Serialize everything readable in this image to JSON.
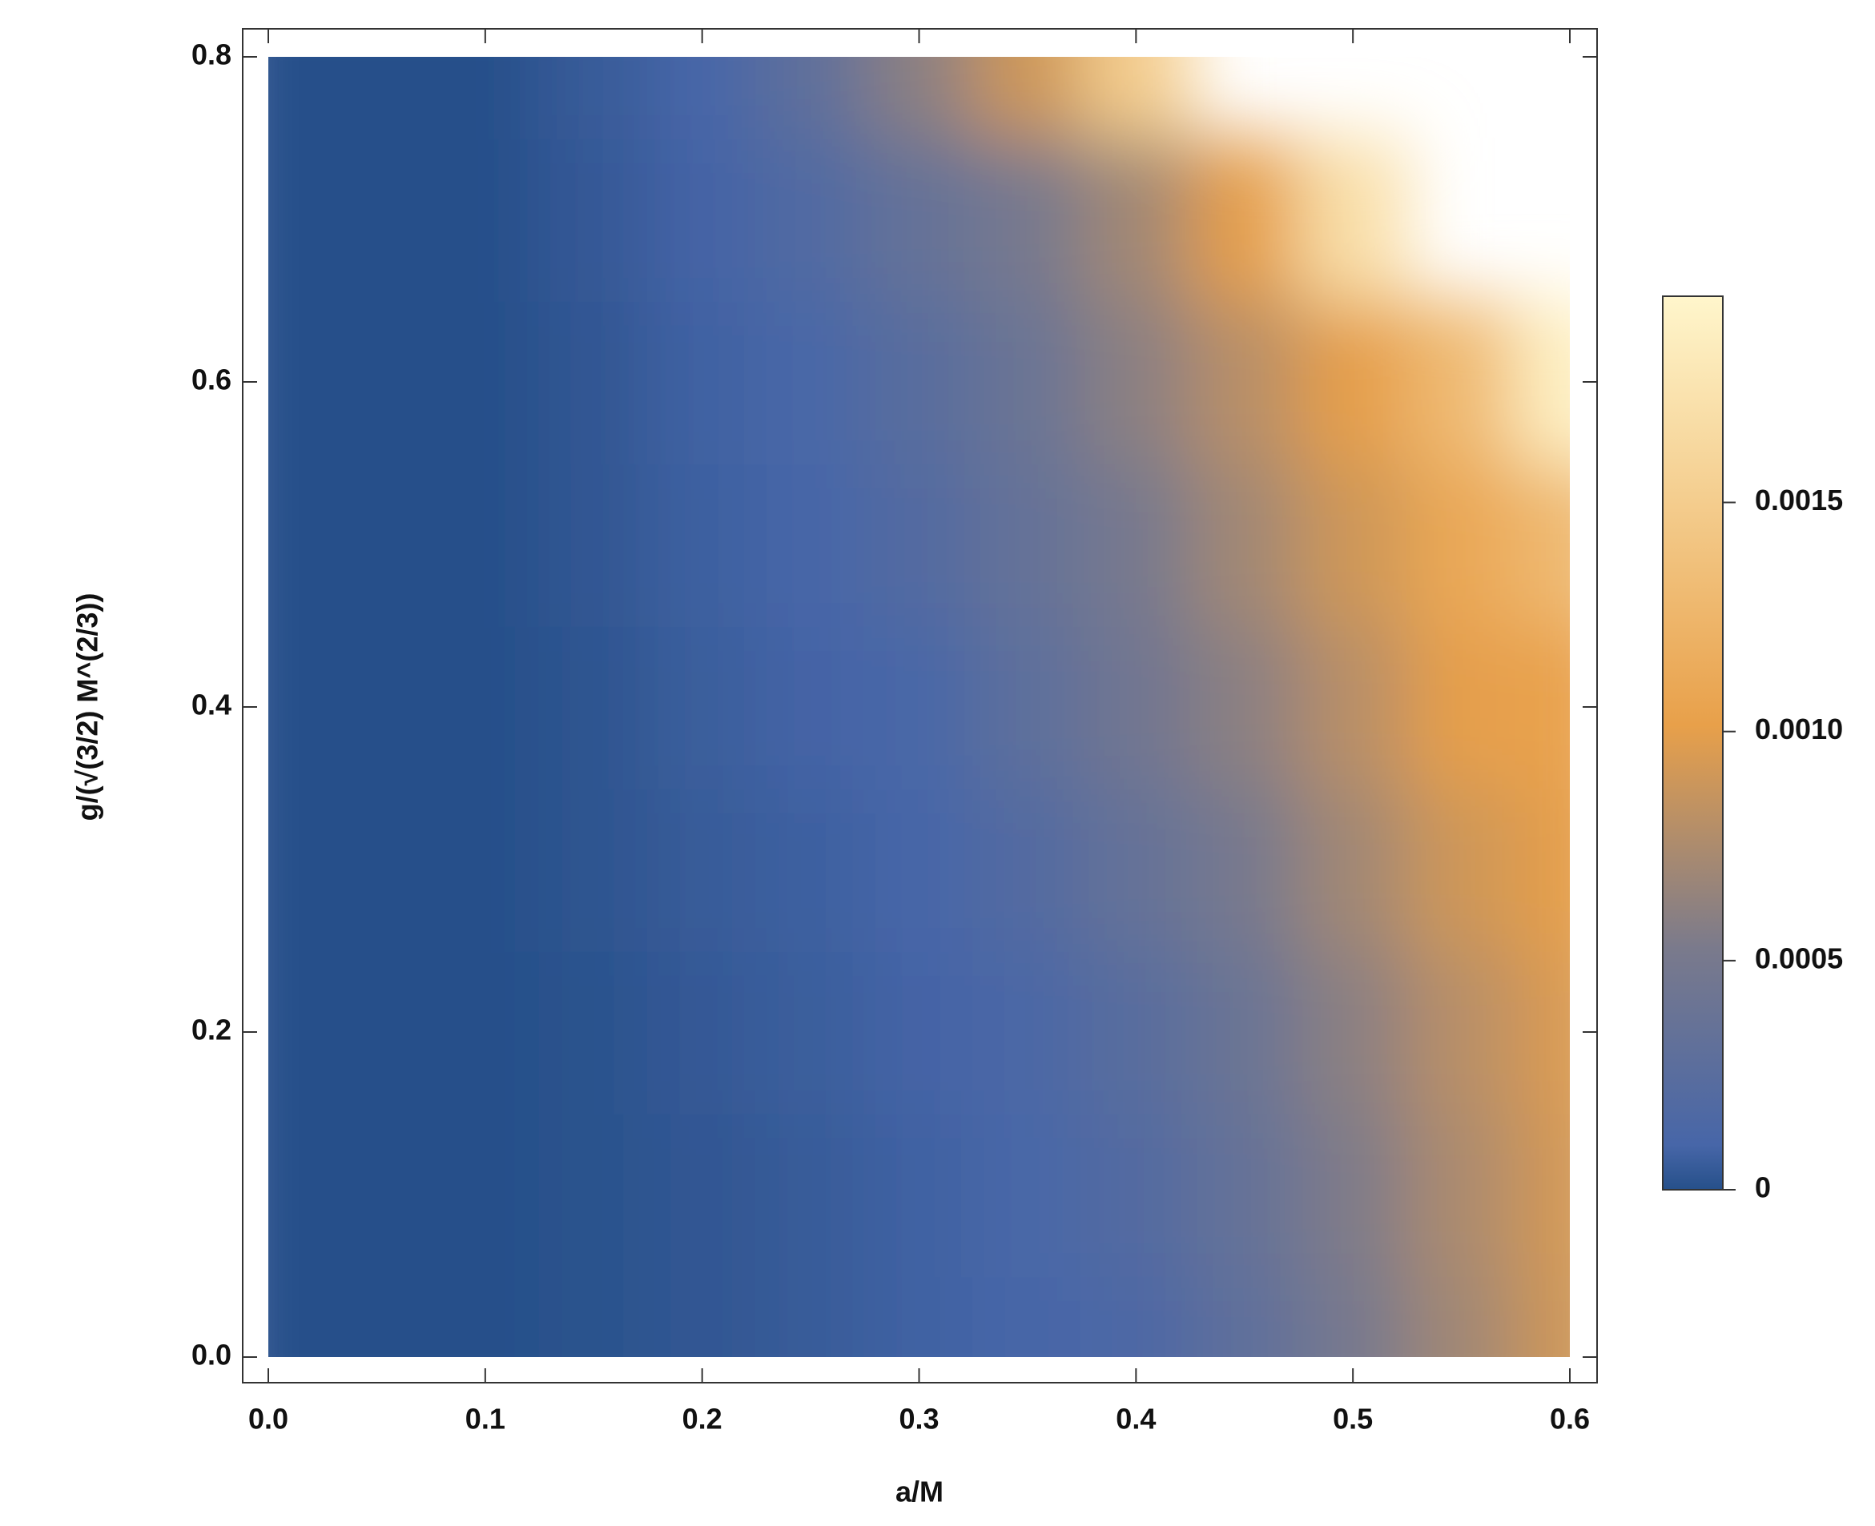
{
  "chart_data": {
    "type": "density",
    "xlabel": "a/M",
    "ylabel": "g/(√(3/2) M^(2/3))",
    "x": [
      0,
      0.05,
      0.1,
      0.15,
      0.2,
      0.25,
      0.3,
      0.35,
      0.4,
      0.45,
      0.5,
      0.55,
      0.6
    ],
    "y": [
      0,
      0.1,
      0.2,
      0.3,
      0.4,
      0.5,
      0.6,
      0.7,
      0.8
    ],
    "values": [
      [
        0,
        0,
        0,
        1e-05,
        3e-05,
        5e-05,
        8e-05,
        0.0001,
        0.00015,
        0.0003,
        0.0005,
        0.0007,
        0.0009
      ],
      [
        0,
        0,
        0,
        1e-05,
        3e-05,
        5e-05,
        8e-05,
        0.00011,
        0.0002,
        0.00035,
        0.00055,
        0.00075,
        0.00092
      ],
      [
        0,
        0,
        0,
        1e-05,
        4e-05,
        6e-05,
        9e-05,
        0.00013,
        0.00025,
        0.0004,
        0.0006,
        0.0008,
        0.00095
      ],
      [
        0,
        0,
        0,
        2e-05,
        5e-05,
        7e-05,
        0.0001,
        0.0002,
        0.00035,
        0.0005,
        0.0007,
        0.0009,
        0.001
      ],
      [
        0,
        0,
        0,
        2e-05,
        6e-05,
        9e-05,
        0.00012,
        0.00028,
        0.00045,
        0.0006,
        0.0008,
        0.001,
        0.00105
      ],
      [
        0,
        0,
        0,
        3e-05,
        7e-05,
        0.0001,
        0.0002,
        0.00035,
        0.0005,
        0.0007,
        0.0009,
        0.0011,
        0.0013
      ],
      [
        0,
        0,
        0,
        3e-05,
        8e-05,
        0.00012,
        0.00025,
        0.0004,
        0.0006,
        0.0008,
        0.001,
        0.0013,
        0.0019
      ],
      [
        0,
        0,
        0,
        4e-05,
        9e-05,
        0.00018,
        0.00035,
        0.0005,
        0.0007,
        0.001,
        0.0017,
        null,
        null
      ],
      [
        0,
        0,
        0,
        5e-05,
        0.0001,
        0.0003,
        0.0006,
        0.0009,
        0.0015,
        null,
        null,
        null,
        null
      ]
    ],
    "xlim": [
      0,
      0.6
    ],
    "ylim": [
      0,
      0.8
    ],
    "xticks": [
      {
        "value": 0,
        "label": "0.0"
      },
      0.1,
      0.2,
      0.3,
      0.4,
      0.5,
      0.6
    ],
    "yticks": [
      {
        "value": 0,
        "label": "0.0"
      },
      0.2,
      0.4,
      0.6,
      0.8
    ],
    "zlim": [
      0,
      0.00195
    ],
    "zticks": [
      0,
      0.0005,
      {
        "value": 0.001,
        "label": "0.0010"
      },
      0.0015
    ],
    "colorscale": [
      [
        0,
        "#26508a"
      ],
      [
        0.05,
        "#4766a8"
      ],
      [
        0.27,
        "#7a7a8c"
      ],
      [
        0.52,
        "#e8a04a"
      ],
      [
        1,
        "#fff6cc"
      ]
    ]
  }
}
